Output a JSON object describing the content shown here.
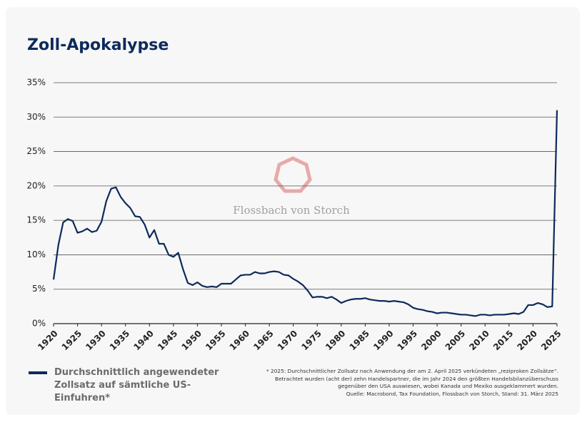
{
  "chart_data": {
    "type": "line",
    "title": "Zoll-Apokalypse",
    "watermark": "Flossbach von Storch",
    "x": [
      1920,
      1921,
      1922,
      1923,
      1924,
      1925,
      1926,
      1927,
      1928,
      1929,
      1930,
      1931,
      1932,
      1933,
      1934,
      1935,
      1936,
      1937,
      1938,
      1939,
      1940,
      1941,
      1942,
      1943,
      1944,
      1945,
      1946,
      1947,
      1948,
      1949,
      1950,
      1951,
      1952,
      1953,
      1954,
      1955,
      1956,
      1957,
      1958,
      1959,
      1960,
      1961,
      1962,
      1963,
      1964,
      1965,
      1966,
      1967,
      1968,
      1969,
      1970,
      1971,
      1972,
      1973,
      1974,
      1975,
      1976,
      1977,
      1978,
      1979,
      1980,
      1981,
      1982,
      1983,
      1984,
      1985,
      1986,
      1987,
      1988,
      1989,
      1990,
      1991,
      1992,
      1993,
      1994,
      1995,
      1996,
      1997,
      1998,
      1999,
      2000,
      2001,
      2002,
      2003,
      2004,
      2005,
      2006,
      2007,
      2008,
      2009,
      2010,
      2011,
      2012,
      2013,
      2014,
      2015,
      2016,
      2017,
      2018,
      2019,
      2020,
      2021,
      2022,
      2023,
      2024,
      2025
    ],
    "series": [
      {
        "name": "Durchschnittlich angewendeter Zollsatz auf sämtliche US-Einfuhren*",
        "color": "#0d2a5c",
        "values": [
          6.4,
          11.4,
          14.7,
          15.2,
          14.9,
          13.2,
          13.4,
          13.8,
          13.3,
          13.5,
          14.8,
          17.8,
          19.6,
          19.8,
          18.4,
          17.5,
          16.8,
          15.6,
          15.5,
          14.4,
          12.5,
          13.6,
          11.6,
          11.6,
          10.0,
          9.7,
          10.3,
          7.9,
          5.9,
          5.6,
          6.0,
          5.5,
          5.3,
          5.4,
          5.3,
          5.8,
          5.8,
          5.8,
          6.4,
          7.0,
          7.1,
          7.1,
          7.5,
          7.3,
          7.3,
          7.5,
          7.6,
          7.5,
          7.1,
          7.0,
          6.5,
          6.1,
          5.6,
          4.8,
          3.8,
          3.9,
          3.9,
          3.7,
          3.9,
          3.5,
          3.0,
          3.3,
          3.5,
          3.6,
          3.6,
          3.7,
          3.5,
          3.4,
          3.3,
          3.3,
          3.2,
          3.3,
          3.2,
          3.1,
          2.8,
          2.3,
          2.1,
          2.0,
          1.8,
          1.7,
          1.5,
          1.6,
          1.6,
          1.5,
          1.4,
          1.3,
          1.3,
          1.2,
          1.1,
          1.3,
          1.3,
          1.2,
          1.3,
          1.3,
          1.3,
          1.4,
          1.5,
          1.4,
          1.7,
          2.7,
          2.7,
          3.0,
          2.8,
          2.4,
          2.5,
          31.0
        ]
      }
    ],
    "xlim": [
      1920,
      2025
    ],
    "xticks": [
      1920,
      1925,
      1930,
      1935,
      1940,
      1945,
      1950,
      1955,
      1960,
      1965,
      1970,
      1975,
      1980,
      1985,
      1990,
      1995,
      2000,
      2005,
      2010,
      2015,
      2020,
      2025
    ],
    "ylim": [
      0,
      35
    ],
    "yticks": [
      {
        "value": 0,
        "label": "0%"
      },
      {
        "value": 5,
        "label": "5%"
      },
      {
        "value": 10,
        "label": "10%"
      },
      {
        "value": 15,
        "label": "15%"
      },
      {
        "value": 20,
        "label": "20%"
      },
      {
        "value": 25,
        "label": "25%"
      },
      {
        "value": 30,
        "label": "30%"
      },
      {
        "value": 35,
        "label": "35%"
      }
    ],
    "grid": true,
    "footnote": [
      "* 2025: Durchschnittlicher Zollsatz nach Anwendung der am 2. April 2025 verkündeten „reziproken Zollsätze“.",
      "Betrachtet wurden (acht der) zehn Handelspartner, die im Jahr 2024 den größten Handelsbilanzüberschuss",
      "gegenüber den USA auswiesen, wobei Kanada und Mexiko ausgeklammert wurden.",
      "Quelle: Macrobond, Tax Foundation, Flossbach von Storch, Stand: 31. März 2025"
    ]
  }
}
